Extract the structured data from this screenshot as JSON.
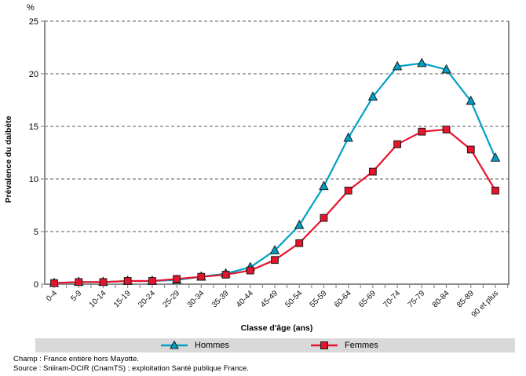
{
  "chart_data": {
    "type": "line",
    "unit_label": "%",
    "ylabel": "Prévalence du daibète",
    "xlabel": "Classe d'âge (ans)",
    "ylim": [
      0,
      25
    ],
    "yticks": [
      0,
      5,
      10,
      15,
      20,
      25
    ],
    "grid": "horizontal dashed gridlines at each y tick",
    "legend_position": "bottom",
    "categories": [
      "0-4",
      "5-9",
      "10-14",
      "15-19",
      "20-24",
      "25-29",
      "30-34",
      "35-39",
      "40-44",
      "45-49",
      "50-54",
      "55-59",
      "60-64",
      "65-69",
      "70-74",
      "75-79",
      "80-84",
      "85-89",
      "90 et plus"
    ],
    "series": [
      {
        "name": "Hommes",
        "marker": "triangle",
        "color": "#00a0c6",
        "values": [
          0.1,
          0.2,
          0.2,
          0.3,
          0.3,
          0.4,
          0.7,
          1.0,
          1.6,
          3.2,
          5.6,
          9.3,
          13.9,
          17.8,
          20.7,
          21.0,
          20.4,
          17.4,
          12.0
        ]
      },
      {
        "name": "Femmes",
        "marker": "square",
        "color": "#e8132d",
        "values": [
          0.1,
          0.2,
          0.2,
          0.3,
          0.3,
          0.5,
          0.7,
          0.9,
          1.3,
          2.3,
          3.9,
          6.3,
          8.9,
          10.7,
          13.3,
          14.5,
          14.7,
          12.8,
          8.9
        ]
      }
    ],
    "colors": {
      "axis": "#8c8c8c",
      "gridline": "#595959",
      "legend_background": "#d9d9d9",
      "marker_outline": "#1a1a1a"
    }
  },
  "footer": {
    "line1": "Champ : France entière hors Mayotte.",
    "line2": "Source : Sniiram-DCIR (CnamTS) ; exploitation Santé publique France."
  }
}
